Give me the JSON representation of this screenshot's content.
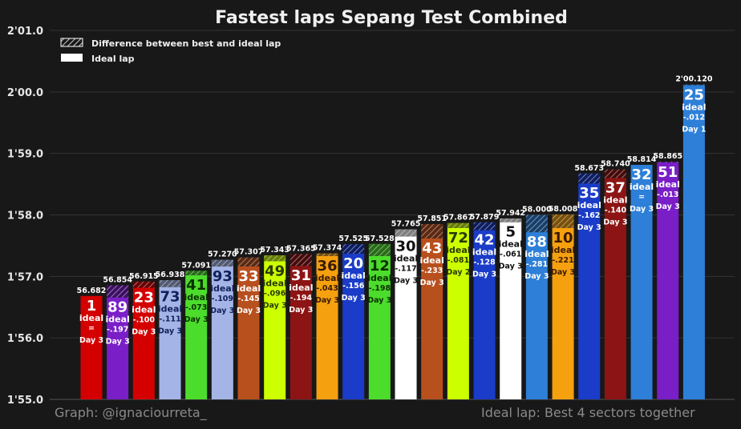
{
  "chart_data": {
    "type": "bar",
    "title": "Fastest laps Sepang Test Combined",
    "legend": {
      "placement": "top-left",
      "items": [
        {
          "label": "Difference between best and ideal lap",
          "style": "hatched"
        },
        {
          "label": "Ideal lap",
          "style": "white"
        }
      ]
    },
    "y_axis": {
      "unit": "seconds",
      "range": [
        115.0,
        121.0
      ],
      "ticks": [
        {
          "value": 115.0,
          "label": "1'55.0"
        },
        {
          "value": 116.0,
          "label": "1'56.0"
        },
        {
          "value": 117.0,
          "label": "1'57.0"
        },
        {
          "value": 118.0,
          "label": "1'58.0"
        },
        {
          "value": 119.0,
          "label": "1'59.0"
        },
        {
          "value": 120.0,
          "label": "2'00.0"
        },
        {
          "value": 121.0,
          "label": "2'01.0"
        }
      ],
      "grid": true
    },
    "ideal_label": "ideal",
    "bars": [
      {
        "number": "1",
        "best_label": "56.682",
        "best": 116.682,
        "ideal": 116.682,
        "diff_label": "=",
        "day": "Day 3",
        "color": "#d40000",
        "text_color": "#ffffff"
      },
      {
        "number": "89",
        "best_label": "56.854",
        "best": 116.854,
        "ideal": 116.657,
        "diff_label": "-.197",
        "day": "Day 3",
        "color": "#7a1ec8",
        "text_color": "#ffffff"
      },
      {
        "number": "23",
        "best_label": "56.915",
        "best": 116.915,
        "ideal": 116.815,
        "diff_label": "-.100",
        "day": "Day 3",
        "color": "#d40000",
        "text_color": "#ffffff"
      },
      {
        "number": "73",
        "best_label": "56.938",
        "best": 116.938,
        "ideal": 116.827,
        "diff_label": "-.111",
        "day": "Day 3",
        "color": "#a4b4e6",
        "text_color": "#10205a"
      },
      {
        "number": "41",
        "best_label": "57.091",
        "best": 117.091,
        "ideal": 117.018,
        "diff_label": "-.073",
        "day": "Day 3",
        "color": "#4cdc2c",
        "text_color": "#0a3000"
      },
      {
        "number": "93",
        "best_label": "57.270",
        "best": 117.27,
        "ideal": 117.161,
        "diff_label": "-.109",
        "day": "Day 3",
        "color": "#a4b4e6",
        "text_color": "#10205a"
      },
      {
        "number": "33",
        "best_label": "57.307",
        "best": 117.307,
        "ideal": 117.162,
        "diff_label": "-.145",
        "day": "Day 3",
        "color": "#b8501e",
        "text_color": "#ffffff"
      },
      {
        "number": "49",
        "best_label": "57.343",
        "best": 117.343,
        "ideal": 117.247,
        "diff_label": "-.096",
        "day": "Day 3",
        "color": "#ccff00",
        "text_color": "#2a3a00"
      },
      {
        "number": "31",
        "best_label": "57.365",
        "best": 117.365,
        "ideal": 117.171,
        "diff_label": "-.194",
        "day": "Day 3",
        "color": "#8c1414",
        "text_color": "#ffffff"
      },
      {
        "number": "36",
        "best_label": "57.374",
        "best": 117.374,
        "ideal": 117.331,
        "diff_label": "-.043",
        "day": "Day 3",
        "color": "#f5a00f",
        "text_color": "#3a1a00"
      },
      {
        "number": "20",
        "best_label": "57.525",
        "best": 117.525,
        "ideal": 117.369,
        "diff_label": "-.156",
        "day": "Day 3",
        "color": "#1a3cc8",
        "text_color": "#ffffff"
      },
      {
        "number": "12",
        "best_label": "57.528",
        "best": 117.528,
        "ideal": 117.33,
        "diff_label": "-.198",
        "day": "Day 3",
        "color": "#4cdc2c",
        "text_color": "#0a3000"
      },
      {
        "number": "30",
        "best_label": "57.765",
        "best": 117.765,
        "ideal": 117.648,
        "diff_label": "-.117",
        "day": "Day 3",
        "color": "#ffffff",
        "text_color": "#111111"
      },
      {
        "number": "43",
        "best_label": "57.851",
        "best": 117.851,
        "ideal": 117.618,
        "diff_label": "-.233",
        "day": "Day 3",
        "color": "#b8501e",
        "text_color": "#ffffff"
      },
      {
        "number": "72",
        "best_label": "57.867",
        "best": 117.867,
        "ideal": 117.786,
        "diff_label": "-.081",
        "day": "Day 2",
        "color": "#ccff00",
        "text_color": "#2a3a00"
      },
      {
        "number": "42",
        "best_label": "57.879",
        "best": 117.879,
        "ideal": 117.751,
        "diff_label": "-.128",
        "day": "Day 3",
        "color": "#1a3cc8",
        "text_color": "#ffffff"
      },
      {
        "number": "5",
        "best_label": "57.942",
        "best": 117.942,
        "ideal": 117.881,
        "diff_label": "-.061",
        "day": "Day 3",
        "color": "#ffffff",
        "text_color": "#111111"
      },
      {
        "number": "88",
        "best_label": "58.000",
        "best": 118.0,
        "ideal": 117.719,
        "diff_label": "-.281",
        "day": "Day 3",
        "color": "#2d7fd8",
        "text_color": "#ffffff"
      },
      {
        "number": "10",
        "best_label": "58.008",
        "best": 118.008,
        "ideal": 117.787,
        "diff_label": "-.221",
        "day": "Day 3",
        "color": "#f5a00f",
        "text_color": "#3a1a00"
      },
      {
        "number": "35",
        "best_label": "58.673",
        "best": 118.673,
        "ideal": 118.511,
        "diff_label": "-.162",
        "day": "Day 3",
        "color": "#1a3cc8",
        "text_color": "#ffffff"
      },
      {
        "number": "37",
        "best_label": "58.740",
        "best": 118.74,
        "ideal": 118.6,
        "diff_label": "-.140",
        "day": "Day 3",
        "color": "#8c1414",
        "text_color": "#ffffff"
      },
      {
        "number": "32",
        "best_label": "58.814",
        "best": 118.814,
        "ideal": 118.814,
        "diff_label": "=",
        "day": "Day 3",
        "color": "#2d7fd8",
        "text_color": "#ffffff"
      },
      {
        "number": "51",
        "best_label": "58.865",
        "best": 118.865,
        "ideal": 118.852,
        "diff_label": "-.013",
        "day": "Day 3",
        "color": "#7a1ec8",
        "text_color": "#ffffff"
      },
      {
        "number": "25",
        "best_label": "2'00.120",
        "best": 120.12,
        "ideal": 120.108,
        "diff_label": "-.012",
        "day": "Day 1",
        "color": "#2d7fd8",
        "text_color": "#ffffff"
      }
    ]
  },
  "footer": {
    "credit": "Graph: @ignaciourreta_",
    "note": "Ideal lap: Best 4 sectors together"
  }
}
